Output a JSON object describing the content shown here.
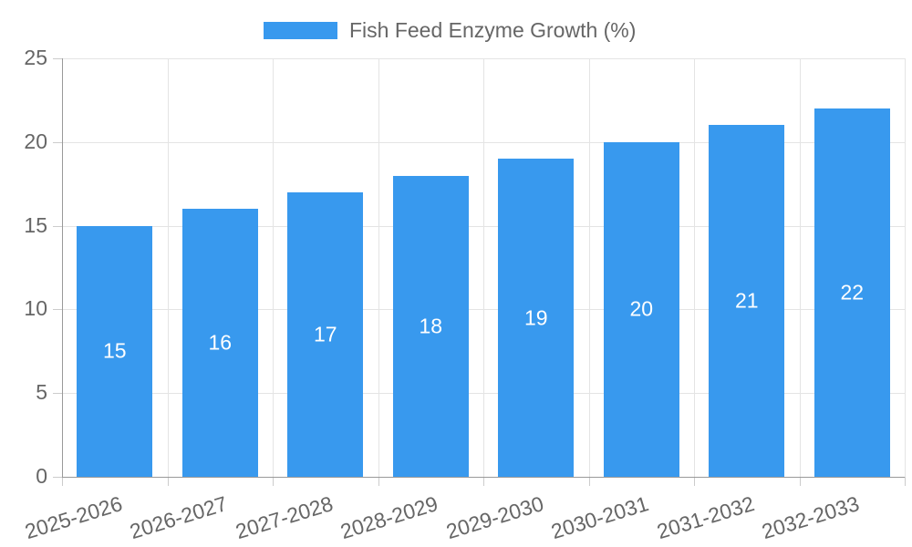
{
  "chart_data": {
    "type": "bar",
    "title": "",
    "legend_label": "Fish Feed Enzyme Growth (%)",
    "legend_position": "top",
    "categories": [
      "2025-2026",
      "2026-2027",
      "2027-2028",
      "2028-2029",
      "2029-2030",
      "2030-2031",
      "2031-2032",
      "2032-2033"
    ],
    "values": [
      15,
      16,
      17,
      18,
      19,
      20,
      21,
      22
    ],
    "xlabel": "",
    "ylabel": "",
    "ylim": [
      0,
      25
    ],
    "yticks": [
      0,
      5,
      10,
      15,
      20,
      25
    ],
    "grid": true,
    "bar_labels_inside": true,
    "colors": {
      "bar": "#3899EE",
      "bar_label": "#FFFFFF",
      "axis_line": "#999999",
      "gridline": "#E4E4E4",
      "tick_mark": "#CCCCCC",
      "tick_label": "#666666",
      "legend_text": "#666666",
      "background": "#FFFFFF"
    }
  }
}
